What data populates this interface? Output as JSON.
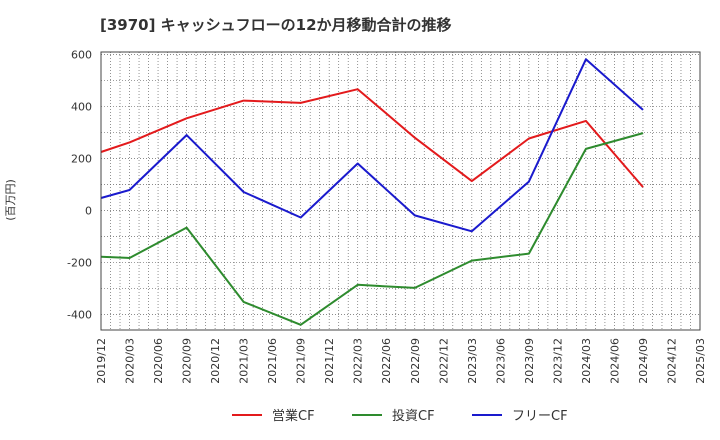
{
  "chart_data": {
    "type": "line",
    "title": "[3970]  キャッシュフローの12か月移動合計の推移",
    "ylabel": "(百万円)",
    "xlabel": "",
    "ylim": [
      -460,
      610
    ],
    "yticks": [
      600,
      400,
      200,
      0,
      -200,
      -400
    ],
    "x": [
      "2019/12",
      "2020/03",
      "2020/06",
      "2020/09",
      "2020/12",
      "2021/03",
      "2021/06",
      "2021/09",
      "2021/12",
      "2022/03",
      "2022/06",
      "2022/09",
      "2022/12",
      "2023/03",
      "2023/06",
      "2023/09",
      "2023/12",
      "2024/03",
      "2024/06",
      "2024/09",
      "2024/12",
      "2025/03"
    ],
    "series": [
      {
        "name": "営業CF",
        "color": "#e31a1c",
        "values": [
          225,
          262,
          null,
          355,
          null,
          423,
          null,
          414,
          null,
          467,
          null,
          280,
          null,
          113,
          null,
          277,
          null,
          345,
          null,
          90,
          null,
          null
        ]
      },
      {
        "name": "投資CF",
        "color": "#2e8b2e",
        "values": [
          -178,
          -183,
          null,
          -66,
          null,
          -352,
          null,
          -440,
          null,
          -286,
          null,
          -298,
          null,
          -193,
          null,
          -166,
          null,
          237,
          null,
          298,
          null,
          null
        ]
      },
      {
        "name": "フリーCF",
        "color": "#1a1acd",
        "values": [
          48,
          79,
          null,
          290,
          null,
          71,
          null,
          -27,
          null,
          181,
          null,
          -19,
          null,
          -80,
          null,
          111,
          null,
          582,
          null,
          387,
          null,
          null
        ]
      }
    ],
    "legend_position": "bottom"
  }
}
